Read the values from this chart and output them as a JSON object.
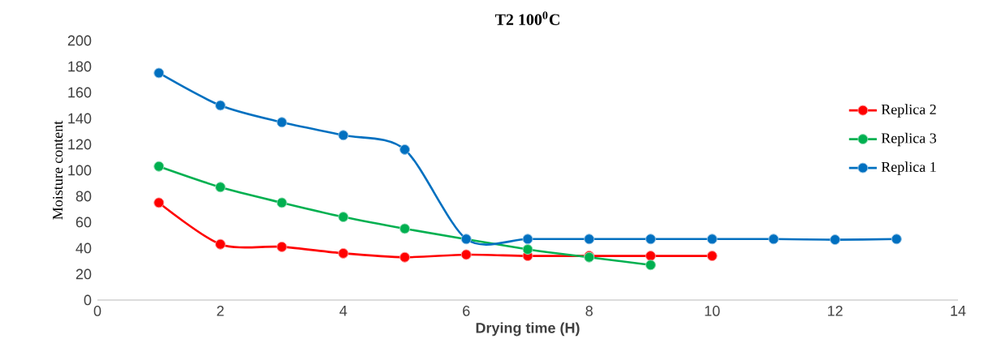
{
  "chart_data": {
    "type": "line",
    "title": "T2 100$^{0}$C",
    "xlabel": "Drying time (H)",
    "ylabel": "Moisture content",
    "xlim": [
      0,
      14
    ],
    "xticks": [
      0,
      2,
      4,
      6,
      8,
      10,
      12,
      14
    ],
    "ylim": [
      0,
      200
    ],
    "yticks": [
      0,
      20,
      40,
      60,
      80,
      100,
      120,
      140,
      160,
      180,
      200
    ],
    "grid": false,
    "legend": "right",
    "marker": "circle",
    "line_style": "solid",
    "series": [
      {
        "name": "Replica 2",
        "color": "#ff0000",
        "x": [
          1,
          2,
          3,
          4,
          5,
          6,
          7,
          8,
          9,
          10
        ],
        "values": [
          75,
          43,
          41,
          36,
          33,
          35,
          34,
          34,
          34,
          34
        ]
      },
      {
        "name": "Replica 3",
        "color": "#00b050",
        "x": [
          1,
          2,
          3,
          4,
          5,
          7,
          8,
          9
        ],
        "values": [
          103,
          87,
          75,
          64,
          55,
          39,
          33,
          27
        ]
      },
      {
        "name": "Replica 1",
        "color": "#0070c0",
        "x": [
          1,
          2,
          3,
          4,
          5,
          6,
          7,
          8,
          9,
          10,
          11,
          12,
          13
        ],
        "values": [
          175,
          150,
          137,
          127,
          116,
          47,
          47,
          47,
          47,
          47,
          47,
          46.5,
          47
        ]
      }
    ]
  }
}
